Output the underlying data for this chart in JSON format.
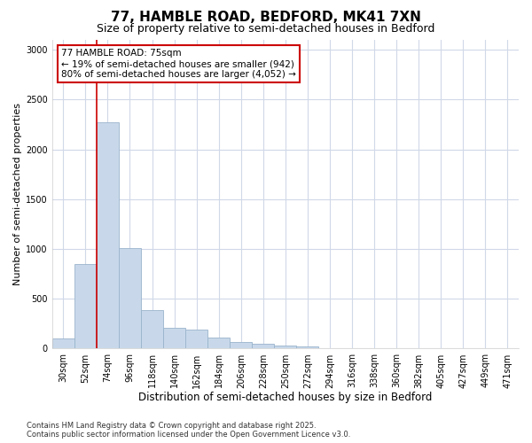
{
  "title": "77, HAMBLE ROAD, BEDFORD, MK41 7XN",
  "subtitle": "Size of property relative to semi-detached houses in Bedford",
  "xlabel": "Distribution of semi-detached houses by size in Bedford",
  "ylabel": "Number of semi-detached properties",
  "footer_line1": "Contains HM Land Registry data © Crown copyright and database right 2025.",
  "footer_line2": "Contains public sector information licensed under the Open Government Licence v3.0.",
  "annotation_title": "77 HAMBLE ROAD: 75sqm",
  "annotation_line1": "← 19% of semi-detached houses are smaller (942)",
  "annotation_line2": "80% of semi-detached houses are larger (4,052) →",
  "bar_color": "#c8d8ea",
  "bar_edge_color": "#9ab4cc",
  "vline_color": "#cc0000",
  "vline_x_index": 2,
  "categories": [
    "30sqm",
    "52sqm",
    "74sqm",
    "96sqm",
    "118sqm",
    "140sqm",
    "162sqm",
    "184sqm",
    "206sqm",
    "228sqm",
    "250sqm",
    "272sqm",
    "294sqm",
    "316sqm",
    "338sqm",
    "360sqm",
    "382sqm",
    "405sqm",
    "427sqm",
    "449sqm",
    "471sqm"
  ],
  "bin_width": 22,
  "bin_starts": [
    19,
    41,
    63,
    85,
    107,
    129,
    151,
    173,
    195,
    217,
    239,
    261,
    283,
    305,
    327,
    349,
    371,
    393,
    415,
    437,
    459
  ],
  "values": [
    105,
    850,
    2270,
    1010,
    390,
    210,
    195,
    110,
    65,
    50,
    35,
    18,
    8,
    4,
    2,
    1,
    1,
    0,
    0,
    0,
    0
  ],
  "ylim": [
    0,
    3100
  ],
  "yticks": [
    0,
    500,
    1000,
    1500,
    2000,
    2500,
    3000
  ],
  "background_color": "#ffffff",
  "plot_bg_color": "#ffffff",
  "grid_color": "#d0d8e8",
  "title_fontsize": 11,
  "subtitle_fontsize": 9,
  "tick_fontsize": 7,
  "ylabel_fontsize": 8,
  "xlabel_fontsize": 8.5,
  "footer_fontsize": 6
}
